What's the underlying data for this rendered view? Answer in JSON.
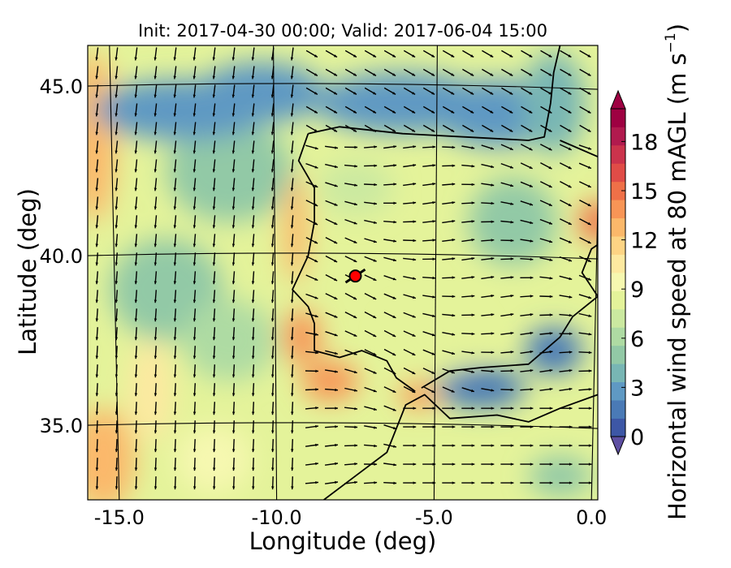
{
  "chart_data": {
    "type": "heatmap",
    "title": "Init: 2017-04-30 00:00; Valid: 2017-06-04 15:00",
    "xlabel": "Longitude (deg)",
    "ylabel": "Latitude (deg)",
    "x_ticks": [
      "-15.0",
      "-10.0",
      "-5.0",
      "0.0"
    ],
    "y_ticks": [
      "45.0",
      "40.0",
      "35.0"
    ],
    "xlim": [
      -16.0,
      0.2
    ],
    "ylim": [
      32.8,
      46.2
    ],
    "colorbar": {
      "label_main": "Horizontal wind speed at 80 mAGL (m s",
      "label_exp": "−1",
      "label_close": ")",
      "range": [
        0,
        20
      ],
      "extend": "both",
      "ticks": [
        "0",
        "3",
        "6",
        "9",
        "12",
        "15",
        "18"
      ],
      "colors": [
        "#3d57a6",
        "#4a7ab6",
        "#5f99c3",
        "#78b6b4",
        "#92c9a6",
        "#aedba3",
        "#cbe9a0",
        "#e4f39a",
        "#f6f8b0",
        "#fde9a0",
        "#fdd484",
        "#fbb86a",
        "#f89556",
        "#ef7048",
        "#e04c47",
        "#cb334c",
        "#b11a4e",
        "#9e0142"
      ]
    },
    "marker": {
      "lon": -7.5,
      "lat": 39.4,
      "color": "#ff0000"
    },
    "note": "Filled contours of 80 m wind speed (m/s) with wind-direction arrows over the Iberian Peninsula; strongest winds (~13-15 m/s) off the Portuguese coast, in the Strait of Gibraltar and near the Ebro delta; weakest (~0-4 m/s) over the Bay of Biscay and Alboran Sea."
  }
}
